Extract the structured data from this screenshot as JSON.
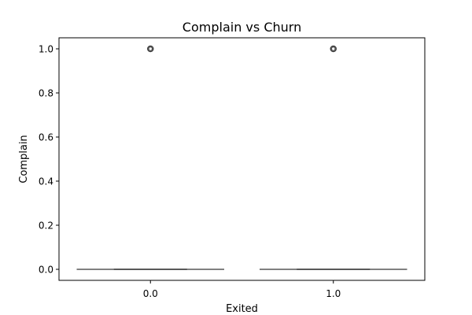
{
  "chart_data": {
    "type": "box",
    "title": "Complain vs Churn",
    "xlabel": "Exited",
    "ylabel": "Complain",
    "categories": [
      "0.0",
      "1.0"
    ],
    "boxes": [
      {
        "category": "0.0",
        "min": 0.0,
        "q1": 0.0,
        "median": 0.0,
        "q3": 0.0,
        "max": 0.0,
        "outliers": [
          1.0
        ]
      },
      {
        "category": "1.0",
        "min": 0.0,
        "q1": 0.0,
        "median": 0.0,
        "q3": 0.0,
        "max": 0.0,
        "outliers": [
          1.0
        ]
      }
    ],
    "ylim": [
      -0.05,
      1.05
    ],
    "yticks": [
      0.0,
      0.2,
      0.4,
      0.6,
      0.8,
      1.0
    ],
    "ytick_labels": [
      "0.0",
      "0.2",
      "0.4",
      "0.6",
      "0.8",
      "1.0"
    ],
    "grid": false,
    "legend": "none",
    "box_color": "#595959"
  }
}
